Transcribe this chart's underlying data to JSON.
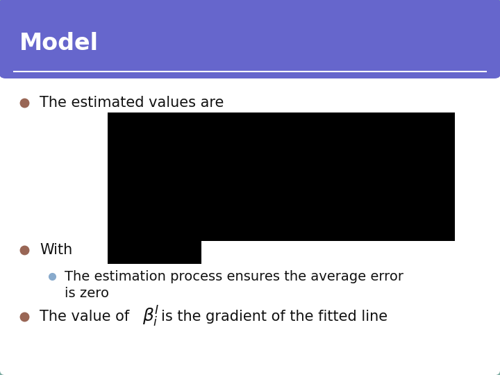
{
  "title": "Model",
  "title_bg_color": "#6666cc",
  "title_text_color": "#ffffff",
  "slide_bg_color": "#ffffff",
  "slide_border_color": "#7aaaa0",
  "bullet_color": "#996655",
  "sub_bullet_color": "#88aacc",
  "bullet1_text": "The estimated values are",
  "bullet2_text": "With",
  "sub_bullet_text1": "The estimation process ensures the average error",
  "sub_bullet_text2": "is zero",
  "bullet3_text1": "The value of ",
  "bullet3_text2": "is the gradient of the fitted line",
  "body_text_color": "#111111",
  "body_fontsize": 15,
  "title_fontsize": 24
}
